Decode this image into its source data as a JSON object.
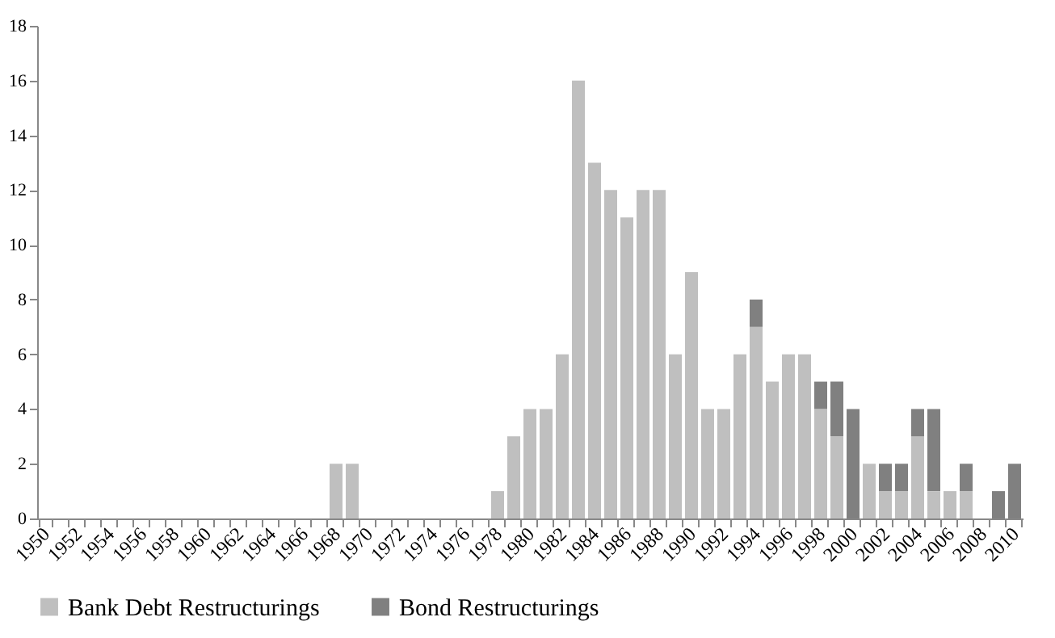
{
  "chart_data": {
    "type": "bar",
    "stacked": true,
    "categories": [
      "1950",
      null,
      "1952",
      null,
      "1954",
      null,
      "1956",
      null,
      "1958",
      null,
      "1960",
      null,
      "1962",
      null,
      "1964",
      null,
      "1966",
      null,
      "1968",
      null,
      "1970",
      null,
      "1972",
      null,
      "1974",
      null,
      "1976",
      null,
      "1978",
      null,
      "1980",
      null,
      "1982",
      null,
      "1984",
      null,
      "1986",
      null,
      "1988",
      null,
      "1990",
      null,
      "1992",
      null,
      "1994",
      null,
      "1996",
      null,
      "1998",
      null,
      "2000",
      null,
      "2002",
      null,
      "2004",
      null,
      "2006",
      null,
      "2008",
      null,
      "2010"
    ],
    "series": [
      {
        "name": "Bank Debt Restructurings",
        "color": "#bfbfbf",
        "values": [
          0,
          0,
          0,
          0,
          0,
          0,
          0,
          0,
          0,
          0,
          0,
          0,
          0,
          0,
          0,
          0,
          0,
          0,
          2,
          2,
          0,
          0,
          0,
          0,
          0,
          0,
          0,
          0,
          1,
          3,
          4,
          4,
          6,
          16,
          13,
          12,
          11,
          12,
          12,
          6,
          9,
          4,
          4,
          6,
          7,
          5,
          6,
          6,
          4,
          3,
          0,
          2,
          1,
          1,
          3,
          1,
          1,
          1,
          0,
          0,
          0
        ]
      },
      {
        "name": "Bond Restructurings",
        "color": "#808080",
        "values": [
          0,
          0,
          0,
          0,
          0,
          0,
          0,
          0,
          0,
          0,
          0,
          0,
          0,
          0,
          0,
          0,
          0,
          0,
          0,
          0,
          0,
          0,
          0,
          0,
          0,
          0,
          0,
          0,
          0,
          0,
          0,
          0,
          0,
          0,
          0,
          0,
          0,
          0,
          0,
          0,
          0,
          0,
          0,
          0,
          1,
          0,
          0,
          0,
          1,
          2,
          4,
          0,
          1,
          1,
          1,
          3,
          0,
          1,
          0,
          1,
          2
        ]
      }
    ],
    "ylim": [
      0,
      18
    ],
    "yticks": [
      0,
      2,
      4,
      6,
      8,
      10,
      12,
      14,
      16,
      18
    ],
    "grid": false,
    "legend": "bottom"
  }
}
